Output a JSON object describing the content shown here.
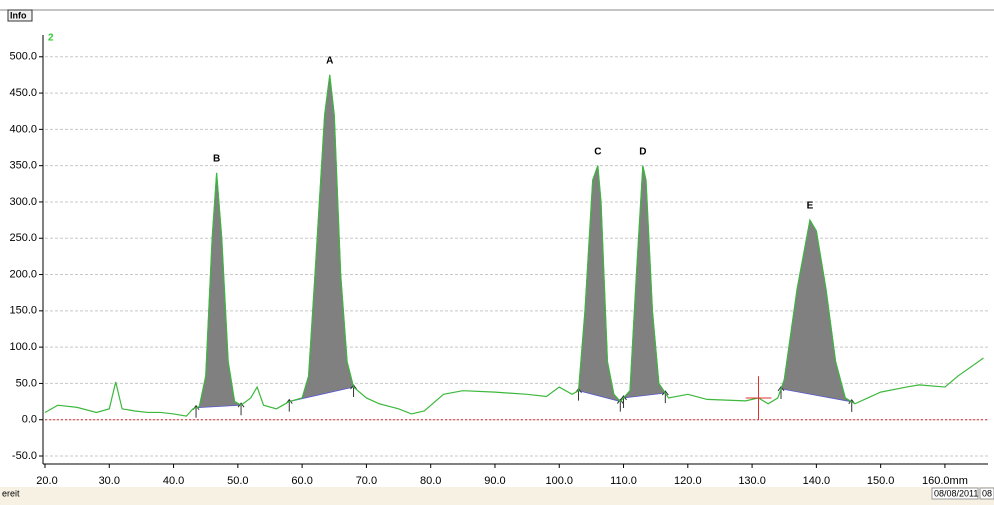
{
  "tab": "Info",
  "status": "ereit",
  "date": "08/08/2011",
  "date_extra": "08",
  "chart_data": {
    "type": "line",
    "trace_label": "2",
    "xlim": [
      20,
      166.7
    ],
    "ylim": [
      -61,
      530
    ],
    "xticks": [
      {
        "value": 20,
        "label": "20.0"
      },
      {
        "value": 30,
        "label": "30.0"
      },
      {
        "value": 40,
        "label": "40.0"
      },
      {
        "value": 50,
        "label": "50.0"
      },
      {
        "value": 60,
        "label": "60.0"
      },
      {
        "value": 70,
        "label": "70.0"
      },
      {
        "value": 80,
        "label": "80.0"
      },
      {
        "value": 90,
        "label": "90.0"
      },
      {
        "value": 100,
        "label": "100.0"
      },
      {
        "value": 110,
        "label": "110.0"
      },
      {
        "value": 120,
        "label": "120.0"
      },
      {
        "value": 130,
        "label": "130.0"
      },
      {
        "value": 140,
        "label": "140.0"
      },
      {
        "value": 150,
        "label": "150.0"
      },
      {
        "value": 160,
        "label": "160.0mm"
      }
    ],
    "yticks": [
      {
        "value": -50,
        "label": "-50.0"
      },
      {
        "value": 0,
        "label": "0.0"
      },
      {
        "value": 50,
        "label": "50.0"
      },
      {
        "value": 100,
        "label": "100.0"
      },
      {
        "value": 150,
        "label": "150.0"
      },
      {
        "value": 200,
        "label": "200.0"
      },
      {
        "value": 250,
        "label": "250.0"
      },
      {
        "value": 300,
        "label": "300.0"
      },
      {
        "value": 350,
        "label": "350.0"
      },
      {
        "value": 400,
        "label": "400.0"
      },
      {
        "value": 450,
        "label": "450.0"
      },
      {
        "value": 500,
        "label": "500.0"
      }
    ],
    "grid": true,
    "series": [
      {
        "color": "#3cb83c",
        "x": [
          20,
          22,
          25,
          28,
          30,
          31,
          32,
          34,
          36,
          38,
          40,
          42,
          43,
          44,
          45,
          46,
          46.7,
          47.5,
          48.5,
          49.5,
          50.5,
          52,
          53,
          54,
          56,
          58,
          60,
          61,
          62,
          63.5,
          64.3,
          65,
          66,
          67,
          68,
          70,
          72,
          75,
          77,
          79,
          82,
          85,
          90,
          95,
          98,
          100,
          102,
          103,
          104,
          105.2,
          106,
          106.5,
          107.5,
          108.5,
          109.5,
          111,
          112,
          113,
          113.5,
          114.5,
          115.5,
          117,
          120,
          123,
          126,
          129,
          131,
          132.5,
          134,
          135,
          137,
          139,
          140,
          141.5,
          143,
          144.5,
          146,
          148,
          150,
          154,
          156,
          160,
          162,
          166
        ],
        "values": [
          10,
          20,
          17,
          10,
          15,
          52,
          15,
          12,
          10,
          10,
          8,
          5,
          15,
          18,
          60,
          250,
          340,
          250,
          80,
          25,
          20,
          30,
          45,
          20,
          15,
          25,
          30,
          60,
          200,
          420,
          475,
          420,
          200,
          80,
          45,
          30,
          22,
          15,
          8,
          12,
          35,
          40,
          38,
          35,
          32,
          45,
          35,
          40,
          150,
          330,
          350,
          300,
          80,
          35,
          25,
          40,
          200,
          350,
          330,
          150,
          50,
          30,
          35,
          28,
          27,
          26,
          30,
          22,
          30,
          55,
          180,
          275,
          260,
          180,
          80,
          30,
          22,
          30,
          38,
          45,
          48,
          45,
          60,
          85
        ]
      }
    ],
    "peaks": [
      {
        "label": "A",
        "x": 64.3,
        "y": 475,
        "start": 58,
        "end": 68
      },
      {
        "label": "B",
        "x": 46.7,
        "y": 340,
        "start": 43.5,
        "end": 50.5
      },
      {
        "label": "C",
        "x": 106,
        "y": 350,
        "start": 103,
        "end": 109.5
      },
      {
        "label": "D",
        "x": 113,
        "y": 350,
        "start": 110,
        "end": 116.5
      },
      {
        "label": "E",
        "x": 139,
        "y": 275,
        "start": 134.5,
        "end": 145.5
      }
    ]
  }
}
